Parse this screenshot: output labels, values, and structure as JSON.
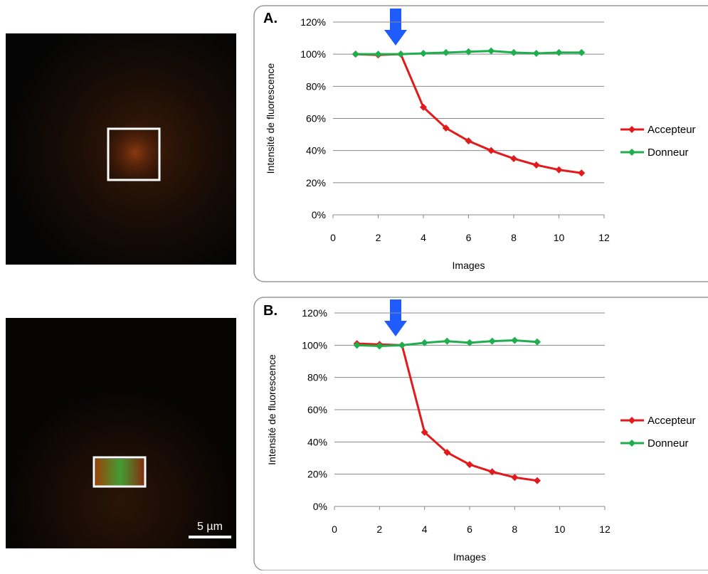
{
  "image_labels": {
    "scale_bar": "5 µm"
  },
  "chart_data": [
    {
      "type": "line",
      "title": "A.",
      "x_label": "Images",
      "y_label": "Intensité de fluorescence",
      "x": [
        1,
        2,
        3,
        4,
        5,
        6,
        7,
        8,
        9,
        10,
        11
      ],
      "series": [
        {
          "name": "Accepteur",
          "color": "#e31a1c",
          "values": [
            100,
            99.5,
            100,
            67,
            54,
            46,
            40,
            35,
            31,
            28,
            26
          ]
        },
        {
          "name": "Donneur",
          "color": "#1fae4e",
          "values": [
            100,
            100,
            100,
            100.5,
            101,
            101.5,
            102,
            101,
            100.5,
            101,
            101
          ]
        }
      ],
      "xlim": [
        0,
        12
      ],
      "xticks": [
        0,
        2,
        4,
        6,
        8,
        10,
        12
      ],
      "ylim": [
        0,
        120
      ],
      "yticks": [
        {
          "value": 0,
          "label": "0%"
        },
        {
          "value": 20,
          "label": "20%"
        },
        {
          "value": 40,
          "label": "40%"
        },
        {
          "value": 60,
          "label": "60%"
        },
        {
          "value": 80,
          "label": "80%"
        },
        {
          "value": 100,
          "label": "100%"
        },
        {
          "value": 120,
          "label": "120%"
        }
      ],
      "grid": true,
      "legend": "right"
    },
    {
      "type": "line",
      "title": "B.",
      "x_label": "Images",
      "y_label": "Intensité de fluorescence",
      "x": [
        1,
        2,
        3,
        4,
        5,
        6,
        7,
        8,
        9
      ],
      "series": [
        {
          "name": "Accepteur",
          "color": "#e31a1c",
          "values": [
            101,
            100.5,
            100,
            46,
            33.5,
            26,
            21.5,
            18,
            16
          ]
        },
        {
          "name": "Donneur",
          "color": "#1fae4e",
          "values": [
            100,
            99.5,
            100,
            101.5,
            102.5,
            101.5,
            102.5,
            103,
            102
          ]
        }
      ],
      "xlim": [
        0,
        12
      ],
      "xticks": [
        0,
        2,
        4,
        6,
        8,
        10,
        12
      ],
      "ylim": [
        0,
        120
      ],
      "yticks": [
        {
          "value": 0,
          "label": "0%"
        },
        {
          "value": 20,
          "label": "20%"
        },
        {
          "value": 40,
          "label": "40%"
        },
        {
          "value": 60,
          "label": "60%"
        },
        {
          "value": 80,
          "label": "80%"
        },
        {
          "value": 100,
          "label": "100%"
        },
        {
          "value": 120,
          "label": "120%"
        }
      ],
      "grid": true,
      "legend": "right"
    }
  ]
}
